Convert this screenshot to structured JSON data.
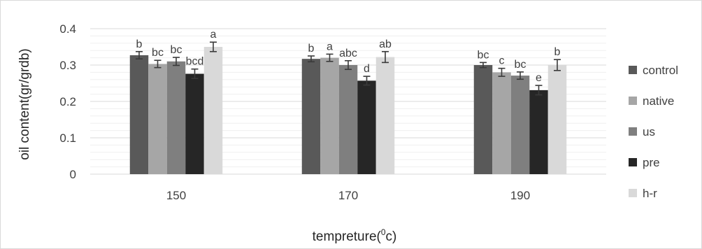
{
  "chart_data": {
    "type": "bar",
    "xlabel": "tempreture(",
    "xlabel_sup": "0",
    "xlabel_tail": "c)",
    "ylabel": "oil content(gr/grdb)",
    "ylim": [
      0,
      0.4
    ],
    "yticks": [
      "0",
      "0.1",
      "0.2",
      "0.3",
      "0.4"
    ],
    "categories": [
      "150",
      "170",
      "190"
    ],
    "grid": true,
    "legend_position": "right",
    "series": [
      {
        "name": "control",
        "color": "#595959",
        "values": [
          0.327,
          0.317,
          0.3
        ],
        "errors": [
          0.01,
          0.008,
          0.007
        ],
        "labels": [
          "b",
          "b",
          "bc"
        ]
      },
      {
        "name": "native",
        "color": "#a6a6a6",
        "values": [
          0.303,
          0.32,
          0.28
        ],
        "errors": [
          0.01,
          0.01,
          0.011
        ],
        "labels": [
          "bc",
          "a",
          "c"
        ]
      },
      {
        "name": "us",
        "color": "#7f7f7f",
        "values": [
          0.31,
          0.3,
          0.271
        ],
        "errors": [
          0.011,
          0.012,
          0.01
        ],
        "labels": [
          "bc",
          "abc",
          "bc"
        ]
      },
      {
        "name": "pre",
        "color": "#262626",
        "values": [
          0.276,
          0.257,
          0.231
        ],
        "errors": [
          0.013,
          0.012,
          0.013
        ],
        "labels": [
          "bcd",
          "d",
          "e"
        ]
      },
      {
        "name": "h-r",
        "color": "#d9d9d9",
        "values": [
          0.35,
          0.322,
          0.3
        ],
        "errors": [
          0.013,
          0.015,
          0.015
        ],
        "labels": [
          "a",
          "ab",
          "b"
        ]
      }
    ]
  }
}
